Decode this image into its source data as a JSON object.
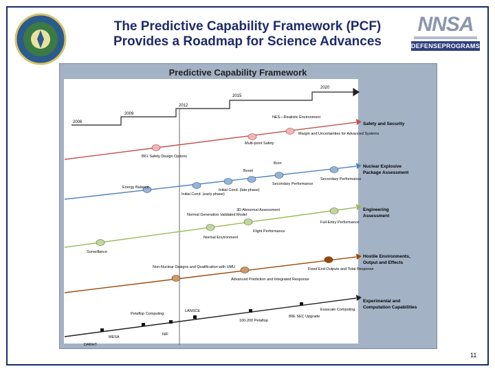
{
  "slide": {
    "title_line1": "The Predictive Capability Framework (PCF)",
    "title_line2": "Provides a Roadmap for Science Advances",
    "page_number": "11"
  },
  "logos": {
    "doe_seal": "doe-seal-icon",
    "nnsa": "NNSA",
    "defense_programs": "DEFENSEPROGRAMS"
  },
  "diagram": {
    "title": "Predictive Capability Framework",
    "years": [
      "2006",
      "2009",
      "2012",
      "2015",
      "2020"
    ],
    "categories": [
      "Safety and Security",
      "Nuclear Explosive Package Assessment",
      "Engineering Assessment",
      "Hostile Environments, Output and Effects",
      "Experimental and Computation Capabilities"
    ],
    "safety": [
      "B61 Safety Design Options",
      "Multi-point Safety",
      "NES—Realistic Environment",
      "Margin and Uncertainties for Advanced Systems"
    ],
    "nuclear": [
      "Energy Balance",
      "Initial Cond. (early phase)",
      "Initial Cond. (late phase)",
      "Boost",
      "Burn",
      "Secondary Performance",
      "Secondary Performance"
    ],
    "engineering": [
      "Surveillance",
      "Normal Generation Validated Model",
      "3D Abnormal Assessment",
      "Flight Performance",
      "Normal Environment",
      "Full-Entry Performance"
    ],
    "hostile": [
      "Non-Nuclear Designs and Qualification with UMU",
      "Advanced Prediction and Integrated Response",
      "Fixed End Outputs and Total Response"
    ],
    "experimental": [
      "DARHT",
      "Petaflop Computing",
      "MESA",
      "NIF",
      "LANSCE",
      "100-200 Petaflop",
      "Exascale Computing",
      "80E SEC Upgrade"
    ]
  },
  "colors": {
    "title": "#1f2a6b",
    "panel": "#a3b2c4",
    "safety_line": "#c0504d",
    "nuclear_line": "#4f81bd",
    "engineering_line": "#9bbb59",
    "hostile_line": "#984807",
    "experimental_line": "#1f1f1f"
  }
}
